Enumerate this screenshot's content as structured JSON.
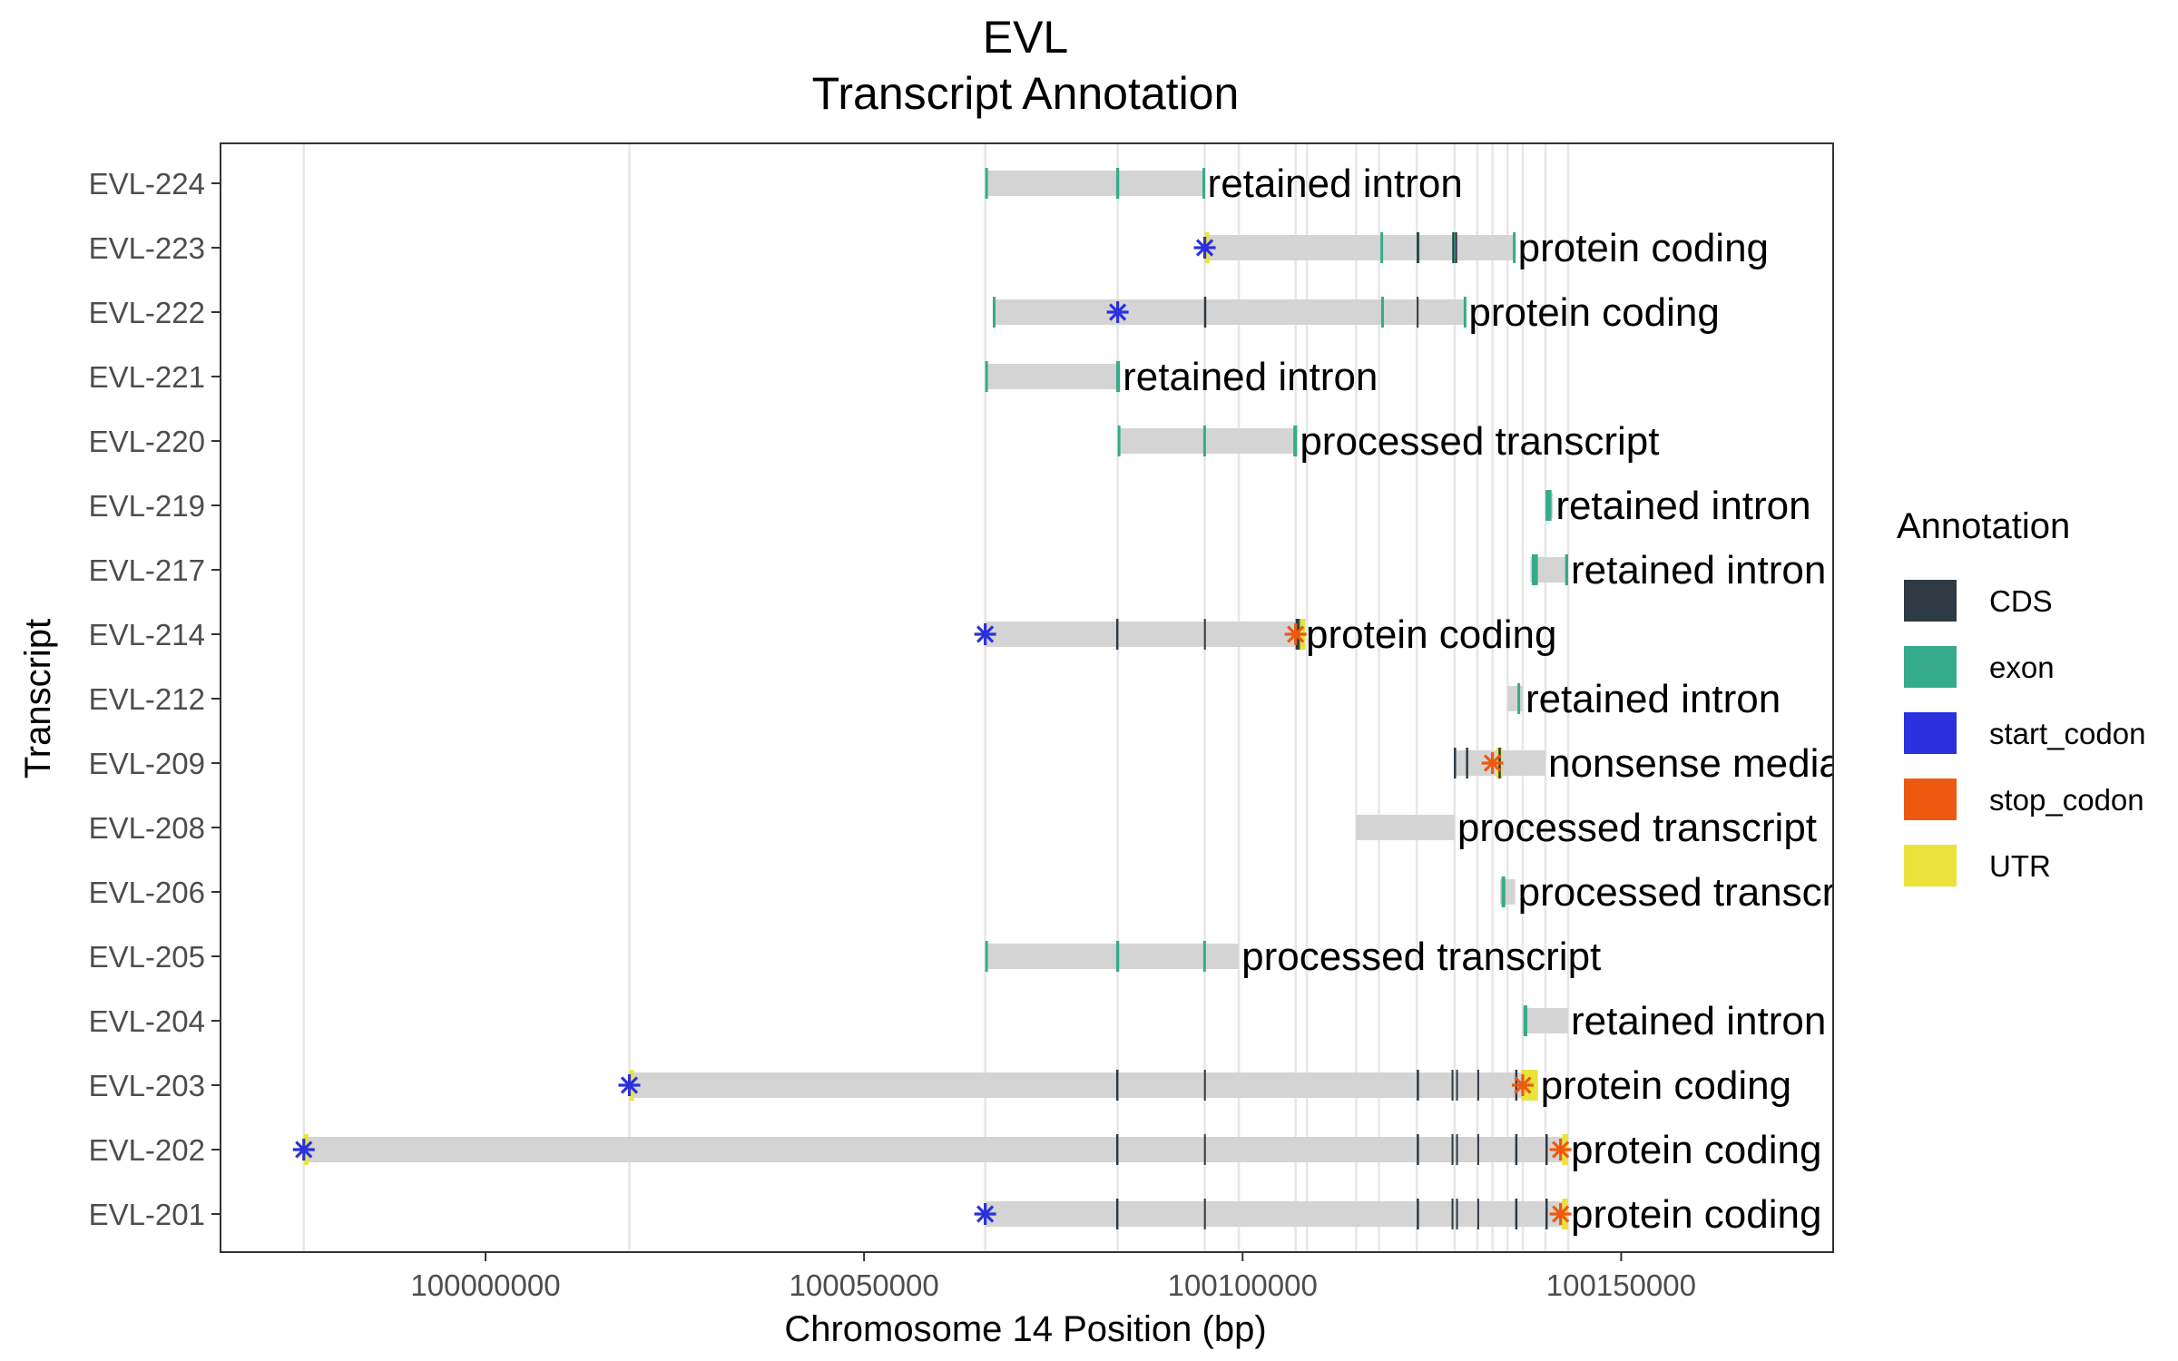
{
  "chart_data": {
    "type": "gene-track",
    "title_line1": "EVL",
    "title_line2": "Transcript Annotation",
    "xlabel": "Chromosome 14 Position (bp)",
    "ylabel": "Transcript",
    "xlim": [
      99965000,
      100178000
    ],
    "x_ticks": [
      100000000,
      100050000,
      100100000,
      100150000
    ],
    "x_tick_labels": [
      "100000000",
      "100050000",
      "100100000",
      "100150000"
    ],
    "grid": true,
    "legend": {
      "title": "Annotation",
      "placement": "right",
      "entries": [
        {
          "label": "CDS",
          "color": "#2e3a44"
        },
        {
          "label": "exon",
          "color": "#35ab8b"
        },
        {
          "label": "start_codon",
          "color": "#2b31dc"
        },
        {
          "label": "stop_codon",
          "color": "#ec5a10"
        },
        {
          "label": "UTR",
          "color": "#ebe23c"
        }
      ]
    },
    "vlines": [
      99976000,
      100019000,
      100066000,
      100083500,
      100095000,
      100099500,
      100107000,
      100108500,
      100115000,
      100118000,
      100123000,
      100128000,
      100131000,
      100133000,
      100135000,
      100137000,
      100140000,
      100143000
    ],
    "transcripts": [
      {
        "name": "EVL-224",
        "type": "retained intron",
        "start": 100066000,
        "end": 100095000,
        "exons": [
          [
            100066000,
            100066300
          ],
          [
            100083300,
            100083700
          ],
          [
            100094700,
            100095000
          ]
        ],
        "cds": [],
        "utr": [],
        "start_codon": null,
        "stop_codon": null
      },
      {
        "name": "EVL-223",
        "type": "protein coding",
        "start": 100095000,
        "end": 100136000,
        "exons": [
          [
            100118200,
            100118400
          ],
          [
            100123000,
            100123300
          ],
          [
            100127700,
            100128300
          ],
          [
            100135700,
            100136000
          ]
        ],
        "cds": [
          [
            100123000,
            100123300
          ],
          [
            100127700,
            100127900
          ],
          [
            100128100,
            100128300
          ]
        ],
        "utr": [
          [
            100095000,
            100095200
          ]
        ],
        "start_codon": 100095000,
        "stop_codon": null
      },
      {
        "name": "EVL-222",
        "type": "protein coding",
        "start": 100067000,
        "end": 100129500,
        "exons": [
          [
            100067000,
            100067300
          ],
          [
            100118300,
            100118500
          ],
          [
            100129200,
            100129500
          ]
        ],
        "cds": [
          [
            100094900,
            100095200
          ],
          [
            100123000,
            100123200
          ]
        ],
        "utr": [],
        "start_codon": 100083500,
        "stop_codon": null
      },
      {
        "name": "EVL-221",
        "type": "retained intron",
        "start": 100066000,
        "end": 100083800,
        "exons": [
          [
            100066000,
            100066300
          ],
          [
            100083300,
            100083800
          ]
        ],
        "cds": [],
        "utr": [],
        "start_codon": null,
        "stop_codon": null
      },
      {
        "name": "EVL-220",
        "type": "processed transcript",
        "start": 100083500,
        "end": 100107200,
        "exons": [
          [
            100083500,
            100083700
          ],
          [
            100094800,
            100095000
          ],
          [
            100106700,
            100107200
          ]
        ],
        "cds": [],
        "utr": [],
        "start_codon": null,
        "stop_codon": null
      },
      {
        "name": "EVL-219",
        "type": "retained intron",
        "start": 100140000,
        "end": 100141000,
        "exons": [
          [
            100140000,
            100140800
          ]
        ],
        "cds": [],
        "utr": [],
        "start_codon": null,
        "stop_codon": null
      },
      {
        "name": "EVL-217",
        "type": "retained intron",
        "start": 100138000,
        "end": 100143000,
        "exons": [
          [
            100138200,
            100139000
          ],
          [
            100142600,
            100143000
          ]
        ],
        "cds": [],
        "utr": [],
        "start_codon": null,
        "stop_codon": null
      },
      {
        "name": "EVL-214",
        "type": "protein coding",
        "start": 100066000,
        "end": 100108000,
        "exons": [
          [
            100107200,
            100107600
          ]
        ],
        "cds": [
          [
            100083300,
            100083600
          ],
          [
            100094900,
            100095100
          ],
          [
            100107000,
            100107500
          ]
        ],
        "utr": [
          [
            100107000,
            100108300
          ]
        ],
        "start_codon": 100066000,
        "stop_codon": 100107000
      },
      {
        "name": "EVL-212",
        "type": "retained intron",
        "start": 100135000,
        "end": 100137000,
        "exons": [
          [
            100136300,
            100136600
          ]
        ],
        "cds": [],
        "utr": [],
        "start_codon": null,
        "stop_codon": null
      },
      {
        "name": "EVL-209",
        "type": "nonsense mediated decay",
        "start": 100128000,
        "end": 100140000,
        "exons": [],
        "cds": [
          [
            100127900,
            100128200
          ],
          [
            100129500,
            100129800
          ],
          [
            100133800,
            100134100
          ]
        ],
        "utr": [
          [
            100133500,
            100134300
          ]
        ],
        "start_codon": null,
        "stop_codon": 100133000
      },
      {
        "name": "EVL-208",
        "type": "processed transcript",
        "start": 100115000,
        "end": 100128000,
        "exons": [],
        "cds": [],
        "utr": [],
        "start_codon": null,
        "stop_codon": null
      },
      {
        "name": "EVL-206",
        "type": "processed transcript",
        "start": 100134000,
        "end": 100136000,
        "exons": [
          [
            100134200,
            100134700
          ]
        ],
        "cds": [],
        "utr": [],
        "start_codon": null,
        "stop_codon": null
      },
      {
        "name": "EVL-205",
        "type": "processed transcript",
        "start": 100066000,
        "end": 100099500,
        "exons": [
          [
            100066000,
            100066300
          ],
          [
            100083300,
            100083700
          ],
          [
            100094800,
            100095000
          ]
        ],
        "cds": [],
        "utr": [],
        "start_codon": null,
        "stop_codon": null
      },
      {
        "name": "EVL-204",
        "type": "retained intron",
        "start": 100137000,
        "end": 100143000,
        "exons": [
          [
            100137100,
            100137600
          ]
        ],
        "cds": [],
        "utr": [],
        "start_codon": null,
        "stop_codon": null
      },
      {
        "name": "EVL-203",
        "type": "protein coding",
        "start": 100019000,
        "end": 100139000,
        "exons": [],
        "cds": [
          [
            100083300,
            100083600
          ],
          [
            100094900,
            100095100
          ],
          [
            100123000,
            100123300
          ],
          [
            100127600,
            100127800
          ],
          [
            100128200,
            100128400
          ],
          [
            100131000,
            100131200
          ],
          [
            100136000,
            100136300
          ]
        ],
        "utr": [
          [
            100019000,
            100019300
          ],
          [
            100136800,
            100139000
          ]
        ],
        "start_codon": 100019000,
        "stop_codon": 100137000
      },
      {
        "name": "EVL-202",
        "type": "protein coding",
        "start": 99976000,
        "end": 100143000,
        "exons": [],
        "cds": [
          [
            100083300,
            100083600
          ],
          [
            100094900,
            100095100
          ],
          [
            100123000,
            100123300
          ],
          [
            100127600,
            100127800
          ],
          [
            100128200,
            100128400
          ],
          [
            100131000,
            100131200
          ],
          [
            100136000,
            100136300
          ],
          [
            100140000,
            100140300
          ]
        ],
        "utr": [
          [
            99976000,
            99976500
          ],
          [
            100142200,
            100143000
          ]
        ],
        "start_codon": 99976000,
        "stop_codon": 100142000
      },
      {
        "name": "EVL-201",
        "type": "protein coding",
        "start": 100066000,
        "end": 100143000,
        "exons": [],
        "cds": [
          [
            100083300,
            100083600
          ],
          [
            100094900,
            100095100
          ],
          [
            100123000,
            100123300
          ],
          [
            100127600,
            100127800
          ],
          [
            100128200,
            100128400
          ],
          [
            100131000,
            100131200
          ],
          [
            100136000,
            100136300
          ],
          [
            100140000,
            100140300
          ]
        ],
        "utr": [
          [
            100142200,
            100143000
          ]
        ],
        "start_codon": 100066000,
        "stop_codon": 100142000
      }
    ]
  }
}
